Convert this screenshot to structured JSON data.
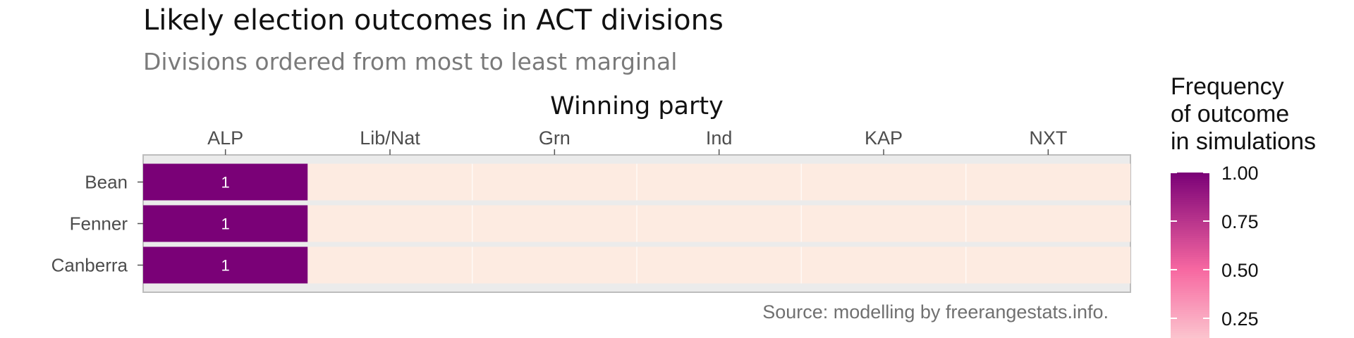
{
  "chart_data": {
    "type": "heatmap",
    "title": "Likely election outcomes in ACT divisions",
    "subtitle": "Divisions ordered from most to least marginal",
    "xlabel": "Winning party",
    "ylabel": "",
    "caption": "Source: modelling by freerangestats.info.",
    "x": [
      "ALP",
      "Lib/Nat",
      "Grn",
      "Ind",
      "KAP",
      "NXT"
    ],
    "y": [
      "Bean",
      "Fenner",
      "Canberra"
    ],
    "values": [
      [
        1,
        0,
        0,
        0,
        0,
        0
      ],
      [
        1,
        0,
        0,
        0,
        0,
        0
      ],
      [
        1,
        0,
        0,
        0,
        0,
        0
      ]
    ],
    "cell_labels": [
      [
        "1",
        "",
        "",
        "",
        "",
        ""
      ],
      [
        "1",
        "",
        "",
        "",
        "",
        ""
      ],
      [
        "1",
        "",
        "",
        "",
        "",
        ""
      ]
    ],
    "legend": {
      "title_lines": [
        "Frequency",
        "of outcome",
        "in simulations"
      ],
      "ticks": [
        1.0,
        0.75,
        0.5,
        0.25
      ],
      "tick_labels": [
        "1.00",
        "0.75",
        "0.50",
        "0.25"
      ],
      "placement": "right",
      "range": [
        0,
        1
      ]
    },
    "colors": {
      "low": "#fdebe1",
      "mid": "#f768a1",
      "high": "#7a0177"
    },
    "grid": true
  }
}
